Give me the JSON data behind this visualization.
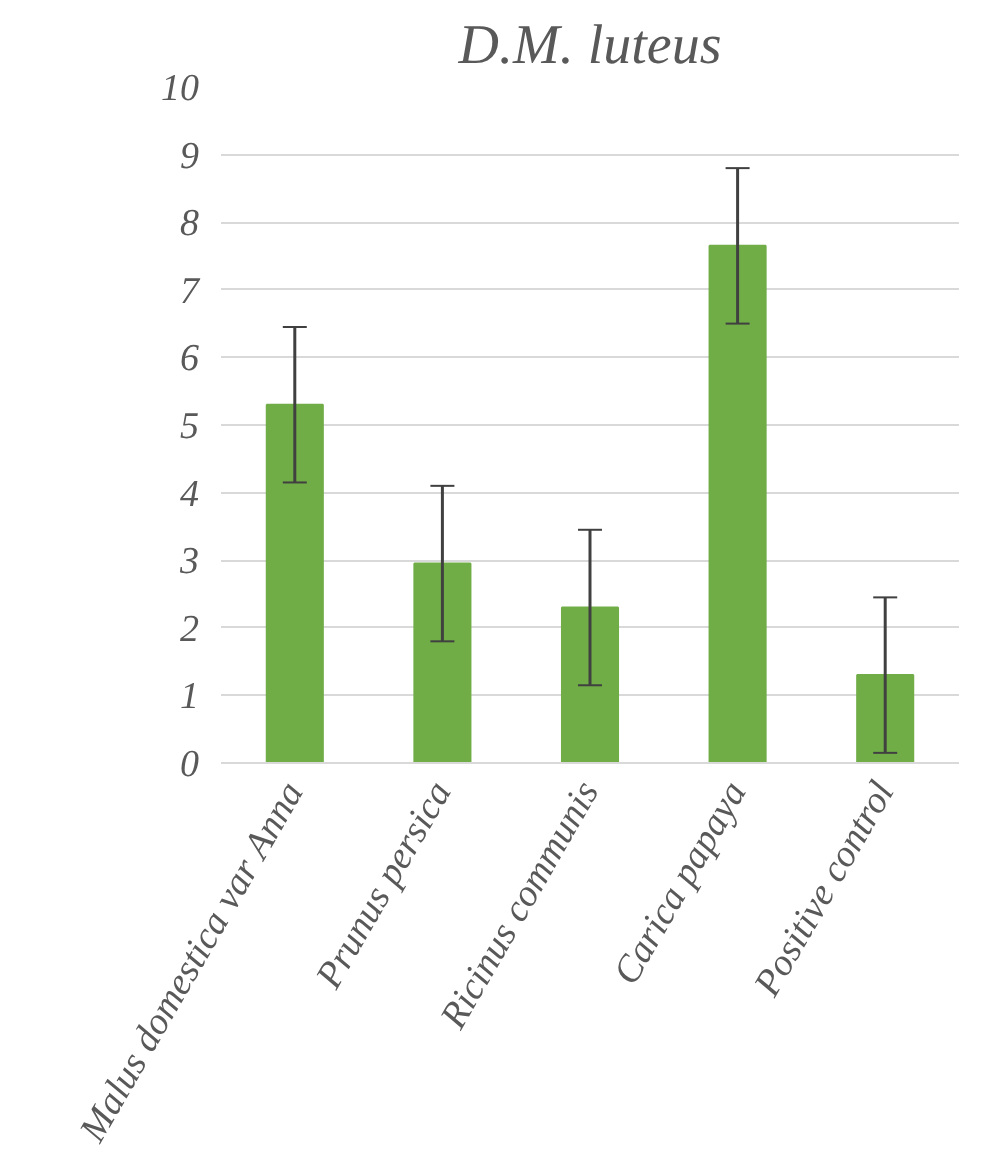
{
  "chart_data": {
    "type": "bar",
    "title": "D.M. luteus",
    "categories": [
      "Malus domestica var Anna",
      "Prunus persica",
      "Ricinus communis",
      "Carica papaya",
      "Positive control"
    ],
    "values": [
      5.3,
      2.95,
      2.3,
      7.65,
      1.3
    ],
    "errors": [
      1.15,
      1.15,
      1.15,
      1.15,
      1.15
    ],
    "color": "#70ad47",
    "ylim": [
      0,
      10
    ],
    "yticks": [
      0,
      1,
      2,
      3,
      4,
      5,
      6,
      7,
      8,
      9,
      10
    ],
    "grid": "y"
  }
}
